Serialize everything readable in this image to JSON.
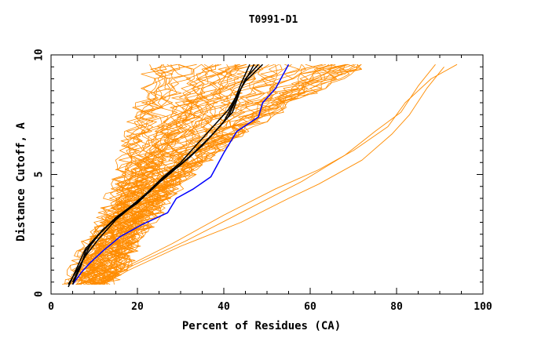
{
  "chart_data": {
    "type": "line",
    "title": "T0991-D1",
    "xlabel": "Percent of Residues (CA)",
    "ylabel": "Distance Cutoff, A",
    "xlim": [
      0,
      100
    ],
    "ylim": [
      0,
      10
    ],
    "x_ticks": [
      "0",
      "20",
      "40",
      "60",
      "80",
      "100"
    ],
    "y_ticks": [
      "0",
      "5",
      "10"
    ],
    "grid": false,
    "colors": {
      "background_models": "#ff8c00",
      "highlight": "#0000ff",
      "reference": "#000000"
    },
    "series": [
      {
        "color": "#0000ff",
        "points": [
          [
            5,
            0.4
          ],
          [
            7,
            0.9
          ],
          [
            9,
            1.3
          ],
          [
            12,
            1.8
          ],
          [
            16,
            2.4
          ],
          [
            21,
            2.9
          ],
          [
            27,
            3.4
          ],
          [
            29,
            4.0
          ],
          [
            33,
            4.4
          ],
          [
            37,
            4.9
          ],
          [
            40,
            5.9
          ],
          [
            43,
            6.8
          ],
          [
            48,
            7.4
          ],
          [
            49,
            8.0
          ],
          [
            52,
            8.6
          ],
          [
            55,
            9.6
          ]
        ]
      },
      {
        "color": "#000000",
        "points": [
          [
            4,
            0.3
          ],
          [
            6,
            1.1
          ],
          [
            8,
            1.9
          ],
          [
            10,
            2.3
          ],
          [
            14,
            3.0
          ],
          [
            18,
            3.6
          ],
          [
            21,
            4.0
          ],
          [
            25,
            4.7
          ],
          [
            30,
            5.4
          ],
          [
            35,
            6.2
          ],
          [
            39,
            7.0
          ],
          [
            42,
            7.6
          ],
          [
            44,
            8.6
          ],
          [
            47,
            9.6
          ]
        ]
      },
      {
        "color": "#000000",
        "points": [
          [
            5,
            0.5
          ],
          [
            7,
            1.3
          ],
          [
            9,
            2.0
          ],
          [
            12,
            2.7
          ],
          [
            16,
            3.3
          ],
          [
            20,
            3.8
          ],
          [
            24,
            4.5
          ],
          [
            28,
            5.1
          ],
          [
            33,
            5.9
          ],
          [
            37,
            6.6
          ],
          [
            41,
            7.4
          ],
          [
            43,
            8.2
          ],
          [
            45,
            9.0
          ],
          [
            48,
            9.6
          ]
        ]
      },
      {
        "color": "#000000",
        "points": [
          [
            4,
            0.4
          ],
          [
            6,
            1.0
          ],
          [
            8,
            1.6
          ],
          [
            11,
            2.3
          ],
          [
            15,
            3.1
          ],
          [
            19,
            3.7
          ],
          [
            23,
            4.3
          ],
          [
            27,
            5.0
          ],
          [
            32,
            5.7
          ],
          [
            36,
            6.4
          ],
          [
            40,
            7.2
          ],
          [
            42,
            7.9
          ],
          [
            44,
            8.8
          ],
          [
            46,
            9.6
          ]
        ]
      },
      {
        "color": "#000000",
        "points": [
          [
            5,
            0.4
          ],
          [
            7,
            1.2
          ],
          [
            8,
            1.8
          ],
          [
            11,
            2.5
          ],
          [
            15,
            3.2
          ],
          [
            18,
            3.6
          ],
          [
            22,
            4.2
          ],
          [
            26,
            4.9
          ],
          [
            30,
            5.5
          ],
          [
            34,
            6.3
          ],
          [
            38,
            7.1
          ],
          [
            41,
            7.7
          ],
          [
            45,
            8.9
          ],
          [
            49,
            9.6
          ]
        ]
      }
    ],
    "background_band": {
      "count": 60,
      "color": "#ff8c00",
      "lower_x": [
        [
          0.4,
          13
        ],
        [
          1.0,
          16
        ],
        [
          2.0,
          18
        ],
        [
          3.0,
          22
        ],
        [
          4.0,
          26
        ],
        [
          5.0,
          31
        ],
        [
          6.0,
          38
        ],
        [
          7.0,
          46
        ],
        [
          8.0,
          55
        ],
        [
          9.0,
          66
        ],
        [
          9.6,
          72
        ]
      ],
      "upper_x": [
        [
          0.4,
          5
        ],
        [
          1.0,
          6
        ],
        [
          2.0,
          9
        ],
        [
          3.0,
          12
        ],
        [
          4.0,
          15
        ],
        [
          5.0,
          17
        ],
        [
          6.0,
          18
        ],
        [
          7.0,
          20
        ],
        [
          8.0,
          22
        ],
        [
          9.0,
          23
        ],
        [
          9.6,
          24
        ]
      ]
    },
    "outlier_series": [
      {
        "color": "#ff8c00",
        "points": [
          [
            12,
            0.4
          ],
          [
            18,
            1.0
          ],
          [
            30,
            2.0
          ],
          [
            44,
            3.0
          ],
          [
            55,
            4.0
          ],
          [
            62,
            4.6
          ],
          [
            72,
            5.6
          ],
          [
            79,
            6.7
          ],
          [
            83,
            7.5
          ],
          [
            87,
            8.6
          ],
          [
            91,
            9.5
          ]
        ]
      },
      {
        "color": "#ff8c00",
        "points": [
          [
            11,
            0.4
          ],
          [
            17,
            1.1
          ],
          [
            28,
            2.1
          ],
          [
            40,
            3.3
          ],
          [
            52,
            4.4
          ],
          [
            62,
            5.2
          ],
          [
            70,
            6.0
          ],
          [
            78,
            7.0
          ],
          [
            82,
            8.0
          ],
          [
            88,
            9.0
          ],
          [
            94,
            9.6
          ]
        ]
      },
      {
        "color": "#ff8c00",
        "points": [
          [
            12,
            0.5
          ],
          [
            19,
            1.2
          ],
          [
            31,
            2.2
          ],
          [
            45,
            3.5
          ],
          [
            58,
            4.7
          ],
          [
            68,
            5.8
          ],
          [
            75,
            6.8
          ],
          [
            81,
            7.6
          ],
          [
            85,
            8.7
          ],
          [
            89,
            9.6
          ]
        ]
      }
    ]
  }
}
